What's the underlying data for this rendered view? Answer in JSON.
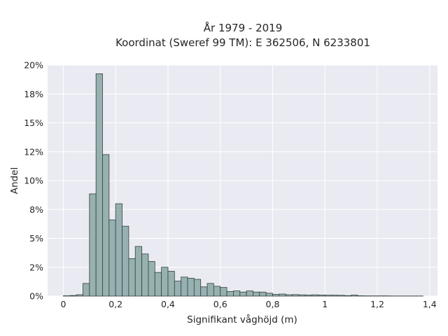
{
  "chart_data": {
    "type": "bar",
    "title_line1": "År 1979 - 2019",
    "title_line2": "Koordinat (Sweref 99 TM): E 362506, N 6233801",
    "xlabel": "Signifikant våghöjd (m)",
    "ylabel": "Andel",
    "xlim": [
      -0.06,
      1.43
    ],
    "ylim": [
      0,
      0.2
    ],
    "grid": true,
    "legend": "none",
    "colors": {
      "bar_fill": "#97b1b1",
      "bar_edge": "#33403f",
      "background": "#eaeaf2",
      "grid": "#ffffff"
    },
    "x_ticks": [
      {
        "v": 0,
        "label": "0"
      },
      {
        "v": 0.2,
        "label": "0,2"
      },
      {
        "v": 0.4,
        "label": "0,4"
      },
      {
        "v": 0.6,
        "label": "0,6"
      },
      {
        "v": 0.8,
        "label": "0,8"
      },
      {
        "v": 1.0,
        "label": "1"
      },
      {
        "v": 1.2,
        "label": "1,2"
      },
      {
        "v": 1.4,
        "label": "1,4"
      }
    ],
    "y_ticks": [
      {
        "v": 0,
        "label": "0%"
      },
      {
        "v": 0.025,
        "label": "2%"
      },
      {
        "v": 0.05,
        "label": "5%"
      },
      {
        "v": 0.075,
        "label": "8%"
      },
      {
        "v": 0.1,
        "label": "10%"
      },
      {
        "v": 0.125,
        "label": "12%"
      },
      {
        "v": 0.15,
        "label": "15%"
      },
      {
        "v": 0.175,
        "label": "18%"
      },
      {
        "v": 0.2,
        "label": "20%"
      }
    ],
    "bin_width": 0.025,
    "bin_starts": [
      0.0,
      0.025,
      0.05,
      0.075,
      0.1,
      0.125,
      0.15,
      0.175,
      0.2,
      0.225,
      0.25,
      0.275,
      0.3,
      0.325,
      0.35,
      0.375,
      0.4,
      0.425,
      0.45,
      0.475,
      0.5,
      0.525,
      0.55,
      0.575,
      0.6,
      0.625,
      0.65,
      0.675,
      0.7,
      0.725,
      0.75,
      0.775,
      0.8,
      0.825,
      0.85,
      0.875,
      0.9,
      0.925,
      0.95,
      0.975,
      1.0,
      1.025,
      1.05,
      1.075,
      1.1,
      1.125,
      1.15,
      1.175,
      1.2,
      1.225,
      1.25,
      1.275,
      1.3,
      1.325,
      1.35
    ],
    "values": [
      0.0003,
      0.0005,
      0.0012,
      0.011,
      0.0885,
      0.1925,
      0.1225,
      0.066,
      0.08,
      0.0605,
      0.0325,
      0.043,
      0.0365,
      0.03,
      0.0205,
      0.025,
      0.0215,
      0.013,
      0.0165,
      0.0155,
      0.0145,
      0.008,
      0.011,
      0.0085,
      0.0075,
      0.004,
      0.0045,
      0.0035,
      0.0045,
      0.0035,
      0.0035,
      0.0025,
      0.0015,
      0.0018,
      0.0012,
      0.0013,
      0.0011,
      0.0009,
      0.0011,
      0.0009,
      0.0008,
      0.0008,
      0.0007,
      0.0004,
      0.0009,
      0.0003,
      0.0002,
      0.0002,
      0.0002,
      0.0002,
      0.0001,
      0.0001,
      0.0001,
      0.0001,
      0.0001
    ]
  }
}
